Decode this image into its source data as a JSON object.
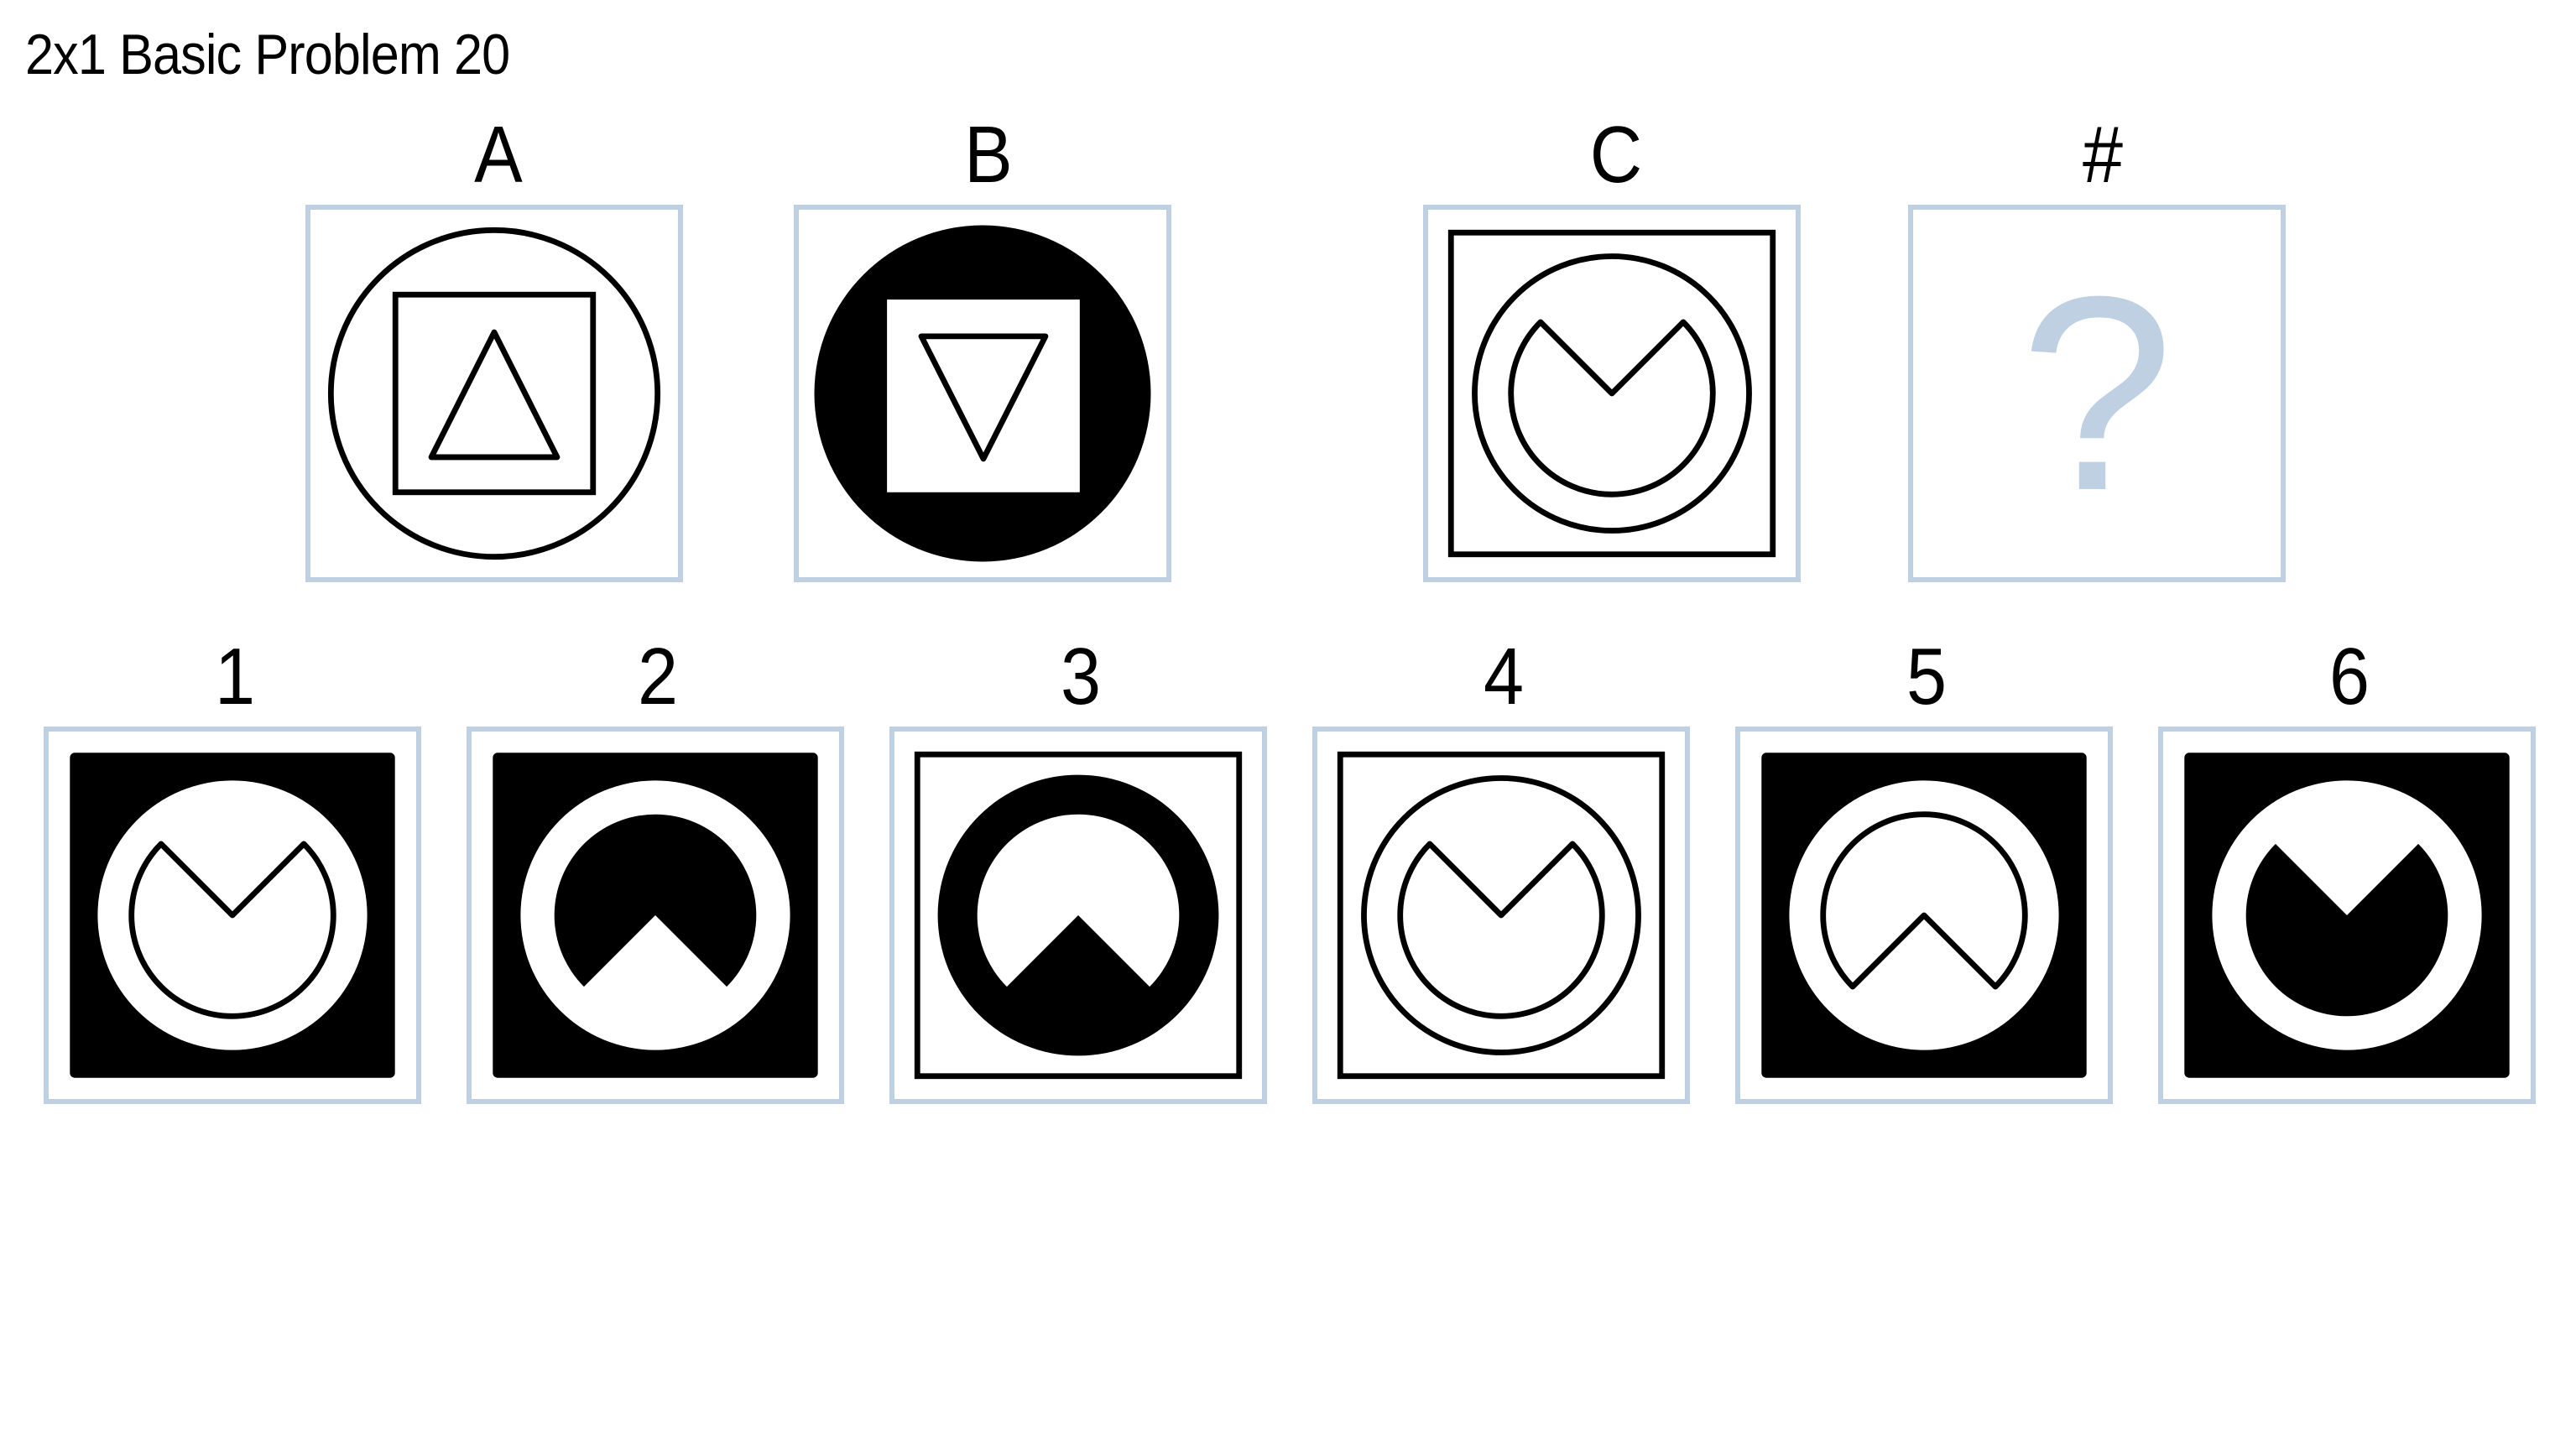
{
  "title": "2x1 Basic Problem 20",
  "colors": {
    "frame": "#bfd0e3",
    "stroke": "#000000",
    "fill": "#000000",
    "question": "#bfd0e3"
  },
  "matrix": {
    "labels": {
      "a": "A",
      "b": "B",
      "c": "C",
      "unknown": "#"
    },
    "unknown_symbol": "?"
  },
  "answers": {
    "labels": [
      "1",
      "2",
      "3",
      "4",
      "5",
      "6"
    ]
  }
}
